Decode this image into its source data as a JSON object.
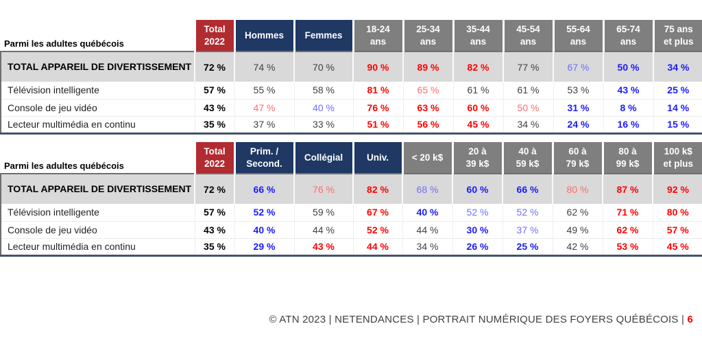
{
  "colors": {
    "header_red": "#B12B31",
    "header_navy": "#1F3864",
    "header_gray": "#7F7F7F",
    "total_row_bg": "#D9D9D9",
    "value_total": "#000000",
    "value_default": "#3F3F3F",
    "value_bold_red": "#FF0000",
    "value_light_red": "#FF6B6B",
    "value_bold_blue": "#1A1AFF",
    "value_light_blue": "#6E6EFF",
    "footer_page_red": "#F20000"
  },
  "tables": [
    {
      "caption": "Parmi les adultes québécois",
      "header": [
        {
          "label": "Total\n2022",
          "type": "red"
        },
        {
          "label": "Hommes",
          "type": "navy"
        },
        {
          "label": "Femmes",
          "type": "navy"
        },
        {
          "label": "18-24\nans",
          "type": "gray"
        },
        {
          "label": "25-34\nans",
          "type": "gray"
        },
        {
          "label": "35-44\nans",
          "type": "gray"
        },
        {
          "label": "45-54\nans",
          "type": "gray"
        },
        {
          "label": "55-64\nans",
          "type": "gray"
        },
        {
          "label": "65-74\nans",
          "type": "gray"
        },
        {
          "label": "75 ans\net plus",
          "type": "gray"
        }
      ],
      "rows": [
        {
          "label": "TOTAL APPAREIL DE DIVERTISSEMENT",
          "emphasis": true,
          "cells": [
            [
              "72 %",
              "k"
            ],
            [
              "74 %",
              "g"
            ],
            [
              "70 %",
              "g"
            ],
            [
              "90 %",
              "R"
            ],
            [
              "89 %",
              "R"
            ],
            [
              "82 %",
              "R"
            ],
            [
              "77 %",
              "g"
            ],
            [
              "67 %",
              "b"
            ],
            [
              "50 %",
              "B"
            ],
            [
              "34 %",
              "B"
            ]
          ]
        },
        {
          "label": "Télévision intelligente",
          "emphasis": false,
          "cells": [
            [
              "57 %",
              "k"
            ],
            [
              "55 %",
              "g"
            ],
            [
              "58 %",
              "g"
            ],
            [
              "81 %",
              "R"
            ],
            [
              "65 %",
              "r"
            ],
            [
              "61 %",
              "g"
            ],
            [
              "61 %",
              "g"
            ],
            [
              "53 %",
              "g"
            ],
            [
              "43 %",
              "B"
            ],
            [
              "25 %",
              "B"
            ]
          ]
        },
        {
          "label": "Console de jeu vidéo",
          "emphasis": false,
          "cells": [
            [
              "43 %",
              "k"
            ],
            [
              "47 %",
              "r"
            ],
            [
              "40 %",
              "b"
            ],
            [
              "76 %",
              "R"
            ],
            [
              "63 %",
              "R"
            ],
            [
              "60 %",
              "R"
            ],
            [
              "50 %",
              "r"
            ],
            [
              "31 %",
              "B"
            ],
            [
              "8 %",
              "B"
            ],
            [
              "14 %",
              "B"
            ]
          ]
        },
        {
          "label": "Lecteur multimédia en continu",
          "emphasis": false,
          "cells": [
            [
              "35 %",
              "k"
            ],
            [
              "37 %",
              "g"
            ],
            [
              "33 %",
              "g"
            ],
            [
              "51 %",
              "R"
            ],
            [
              "56 %",
              "R"
            ],
            [
              "45 %",
              "R"
            ],
            [
              "34 %",
              "g"
            ],
            [
              "24 %",
              "B"
            ],
            [
              "16 %",
              "B"
            ],
            [
              "15 %",
              "B"
            ]
          ]
        }
      ]
    },
    {
      "caption": "Parmi les adultes québécois",
      "header": [
        {
          "label": "Total\n2022",
          "type": "red"
        },
        {
          "label": "Prim. /\nSecond.",
          "type": "navy"
        },
        {
          "label": "Collégial",
          "type": "navy"
        },
        {
          "label": "Univ.",
          "type": "navy"
        },
        {
          "label": "< 20 k$",
          "type": "gray"
        },
        {
          "label": "20 à\n39 k$",
          "type": "gray"
        },
        {
          "label": "40 à\n59 k$",
          "type": "gray"
        },
        {
          "label": "60 à\n79 k$",
          "type": "gray"
        },
        {
          "label": "80 à\n99 k$",
          "type": "gray"
        },
        {
          "label": "100 k$\net plus",
          "type": "gray"
        }
      ],
      "rows": [
        {
          "label": "TOTAL APPAREIL DE DIVERTISSEMENT",
          "emphasis": true,
          "cells": [
            [
              "72 %",
              "k"
            ],
            [
              "66 %",
              "B"
            ],
            [
              "76 %",
              "r"
            ],
            [
              "82 %",
              "R"
            ],
            [
              "68 %",
              "b"
            ],
            [
              "60 %",
              "B"
            ],
            [
              "66 %",
              "B"
            ],
            [
              "80 %",
              "r"
            ],
            [
              "87 %",
              "R"
            ],
            [
              "92 %",
              "R"
            ]
          ]
        },
        {
          "label": "Télévision intelligente",
          "emphasis": false,
          "cells": [
            [
              "57 %",
              "k"
            ],
            [
              "52 %",
              "B"
            ],
            [
              "59 %",
              "g"
            ],
            [
              "67 %",
              "R"
            ],
            [
              "40 %",
              "B"
            ],
            [
              "52 %",
              "b"
            ],
            [
              "52 %",
              "b"
            ],
            [
              "62 %",
              "g"
            ],
            [
              "71 %",
              "R"
            ],
            [
              "80 %",
              "R"
            ]
          ]
        },
        {
          "label": "Console de jeu vidéo",
          "emphasis": false,
          "cells": [
            [
              "43 %",
              "k"
            ],
            [
              "40 %",
              "B"
            ],
            [
              "44 %",
              "g"
            ],
            [
              "52 %",
              "R"
            ],
            [
              "44 %",
              "g"
            ],
            [
              "30 %",
              "B"
            ],
            [
              "37 %",
              "b"
            ],
            [
              "49 %",
              "g"
            ],
            [
              "62 %",
              "R"
            ],
            [
              "57 %",
              "R"
            ]
          ]
        },
        {
          "label": "Lecteur multimédia en continu",
          "emphasis": false,
          "cells": [
            [
              "35 %",
              "k"
            ],
            [
              "29 %",
              "B"
            ],
            [
              "43 %",
              "R"
            ],
            [
              "44 %",
              "R"
            ],
            [
              "34 %",
              "g"
            ],
            [
              "26 %",
              "B"
            ],
            [
              "25 %",
              "B"
            ],
            [
              "42 %",
              "g"
            ],
            [
              "53 %",
              "R"
            ],
            [
              "45 %",
              "R"
            ]
          ]
        }
      ]
    }
  ],
  "footer": {
    "text": "© ATN 2023 | NETENDANCES | PORTRAIT NUMÉRIQUE DES FOYERS QUÉBÉCOIS | ",
    "page_number": "6"
  }
}
